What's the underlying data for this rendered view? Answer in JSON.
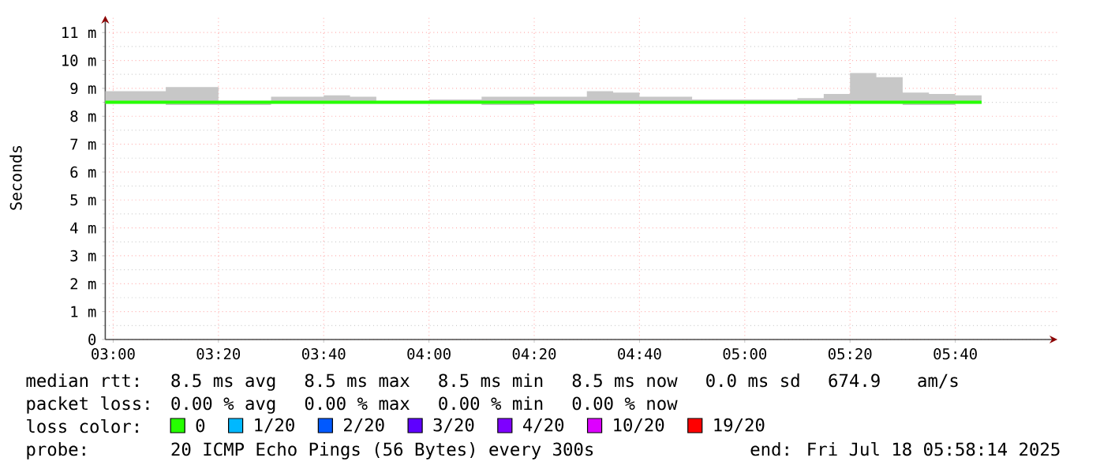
{
  "chart_data": {
    "type": "step",
    "ylabel": "Seconds",
    "legend": "bottom",
    "legend_title": "loss color:",
    "grid": true,
    "xlim": [
      2.975,
      5.99
    ],
    "ylim": [
      0,
      11.6
    ],
    "xticks": [
      {
        "value": 3,
        "label": "03:00"
      },
      {
        "value": 3.3333,
        "label": "03:20"
      },
      {
        "value": 3.6667,
        "label": "03:40"
      },
      {
        "value": 4,
        "label": "04:00"
      },
      {
        "value": 4.3333,
        "label": "04:20"
      },
      {
        "value": 4.6667,
        "label": "04:40"
      },
      {
        "value": 5,
        "label": "05:00"
      },
      {
        "value": 5.3333,
        "label": "05:20"
      },
      {
        "value": 5.6667,
        "label": "05:40"
      }
    ],
    "yticks": [
      0,
      {
        "value": 1,
        "label": "1 m"
      },
      {
        "value": 2,
        "label": "2 m"
      },
      {
        "value": 3,
        "label": "3 m"
      },
      {
        "value": 4,
        "label": "4 m"
      },
      {
        "value": 5,
        "label": "5 m"
      },
      {
        "value": 6,
        "label": "6 m"
      },
      {
        "value": 7,
        "label": "7 m"
      },
      {
        "value": 8,
        "label": "8 m"
      },
      {
        "value": 9,
        "label": "9 m"
      },
      {
        "value": 10,
        "label": "10 m"
      },
      {
        "value": 11,
        "label": "11 m"
      }
    ],
    "x": [
      2.975,
      3.0833,
      3.1667,
      3.25,
      3.3333,
      3.4167,
      3.5,
      3.5833,
      3.6667,
      3.75,
      3.8333,
      3.9167,
      4,
      4.0833,
      4.1667,
      4.25,
      4.3333,
      4.4167,
      4.5,
      4.5833,
      4.6667,
      4.75,
      4.8333,
      4.9167,
      5,
      5.0833,
      5.1667,
      5.25,
      5.3333,
      5.4167,
      5.5,
      5.5833,
      5.6667,
      5.75
    ],
    "series": [
      {
        "name": "0",
        "color": "#26ff00",
        "values": [
          8.5,
          8.5,
          8.5,
          8.5,
          8.5,
          8.5,
          8.5,
          8.5,
          8.5,
          8.5,
          8.5,
          8.5,
          8.5,
          8.5,
          8.5,
          8.5,
          8.5,
          8.5,
          8.5,
          8.5,
          8.5,
          8.5,
          8.5,
          8.5,
          8.5,
          8.5,
          8.5,
          8.5,
          8.5,
          8.5,
          8.5,
          8.5,
          8.5,
          8.5
        ],
        "lower": [
          8.45,
          8.45,
          8.4,
          8.4,
          8.4,
          8.4,
          8.45,
          8.45,
          8.45,
          8.45,
          8.45,
          8.45,
          8.45,
          8.45,
          8.4,
          8.4,
          8.45,
          8.45,
          8.45,
          8.45,
          8.45,
          8.45,
          8.45,
          8.45,
          8.45,
          8.45,
          8.45,
          8.45,
          8.45,
          8.45,
          8.4,
          8.4,
          8.45,
          8.45
        ],
        "upper": [
          8.9,
          8.9,
          9.05,
          9.05,
          8.55,
          8.55,
          8.7,
          8.7,
          8.75,
          8.7,
          8.55,
          8.55,
          8.6,
          8.6,
          8.7,
          8.7,
          8.7,
          8.7,
          8.9,
          8.85,
          8.7,
          8.7,
          8.6,
          8.6,
          8.6,
          8.6,
          8.65,
          8.8,
          9.55,
          9.4,
          8.85,
          8.8,
          8.75,
          8.75
        ]
      },
      {
        "name": "1/20",
        "color": "#00b8ff",
        "values": [
          null,
          null,
          null,
          null,
          null,
          null,
          null,
          null,
          null,
          null,
          null,
          null,
          null,
          null,
          null,
          null,
          null,
          null,
          null,
          null,
          null,
          null,
          null,
          null,
          null,
          null,
          null,
          null,
          null,
          null,
          null,
          null,
          null,
          null
        ]
      },
      {
        "name": "2/20",
        "color": "#0059ff",
        "values": [
          null,
          null,
          null,
          null,
          null,
          null,
          null,
          null,
          null,
          null,
          null,
          null,
          null,
          null,
          null,
          null,
          null,
          null,
          null,
          null,
          null,
          null,
          null,
          null,
          null,
          null,
          null,
          null,
          null,
          null,
          null,
          null,
          null,
          null
        ]
      },
      {
        "name": "3/20",
        "color": "#5e00ff",
        "values": [
          null,
          null,
          null,
          null,
          null,
          null,
          null,
          null,
          null,
          null,
          null,
          null,
          null,
          null,
          null,
          null,
          null,
          null,
          null,
          null,
          null,
          null,
          null,
          null,
          null,
          null,
          null,
          null,
          null,
          null,
          null,
          null,
          null,
          null
        ]
      },
      {
        "name": "4/20",
        "color": "#7e00ff",
        "values": [
          null,
          null,
          null,
          null,
          null,
          null,
          null,
          null,
          null,
          null,
          null,
          null,
          null,
          null,
          null,
          null,
          null,
          null,
          null,
          null,
          null,
          null,
          null,
          null,
          null,
          null,
          null,
          null,
          null,
          null,
          null,
          null,
          null,
          null
        ]
      },
      {
        "name": "10/20",
        "color": "#dd00ff",
        "values": [
          null,
          null,
          null,
          null,
          null,
          null,
          null,
          null,
          null,
          null,
          null,
          null,
          null,
          null,
          null,
          null,
          null,
          null,
          null,
          null,
          null,
          null,
          null,
          null,
          null,
          null,
          null,
          null,
          null,
          null,
          null,
          null,
          null,
          null
        ]
      },
      {
        "name": "19/20",
        "color": "#ff0000",
        "values": [
          null,
          null,
          null,
          null,
          null,
          null,
          null,
          null,
          null,
          null,
          null,
          null,
          null,
          null,
          null,
          null,
          null,
          null,
          null,
          null,
          null,
          null,
          null,
          null,
          null,
          null,
          null,
          null,
          null,
          null,
          null,
          null,
          null,
          null
        ]
      }
    ],
    "annotations": [
      "median rtt:",
      "8.5 ms avg",
      "8.5 ms max",
      "8.5 ms min",
      "8.5 ms now",
      "0.0 ms sd",
      "674.9",
      "am/s",
      "packet loss:",
      "0.00 % avg",
      "0.00 % max",
      "0.00 % min",
      "0.00 % now",
      "probe:",
      "20 ICMP Echo Pings (56 Bytes) every 300s",
      "end: Fri Jul 18 05:58:14 2025"
    ]
  }
}
